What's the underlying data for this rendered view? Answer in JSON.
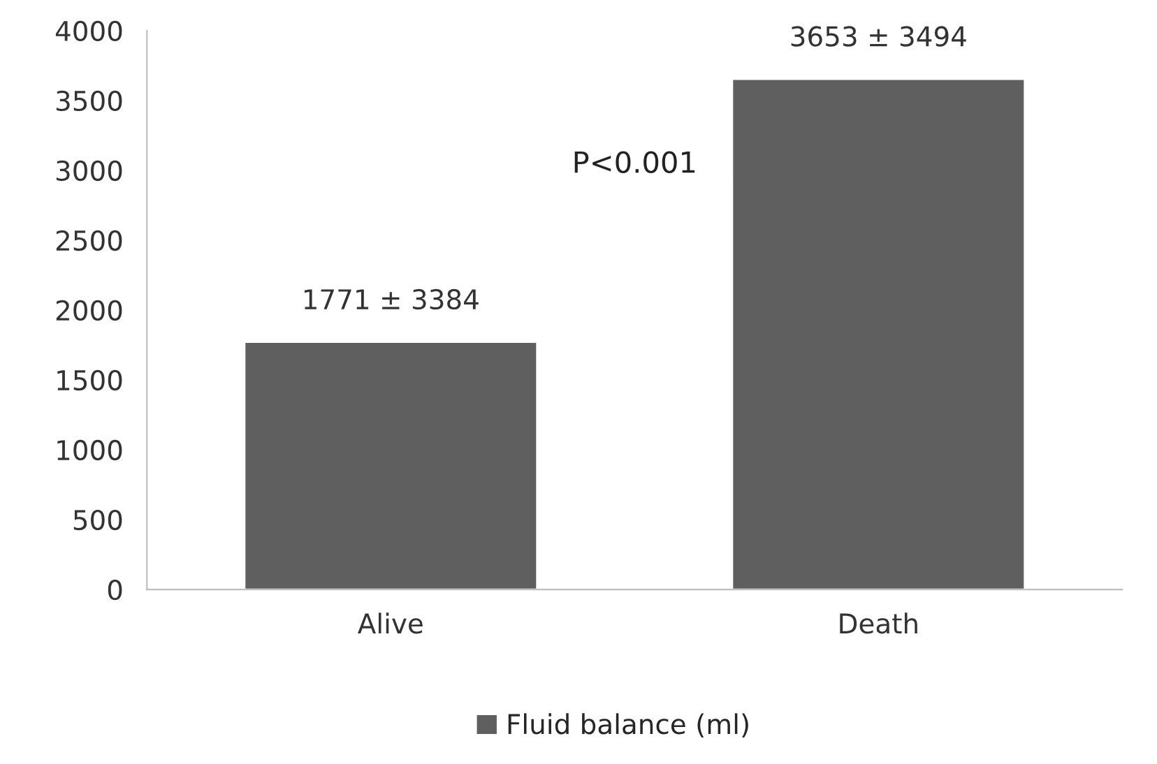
{
  "chart_data": {
    "type": "bar",
    "categories": [
      "Alive",
      "Death"
    ],
    "series": [
      {
        "name": "Fluid balance (ml)",
        "color": "#5f5f5f",
        "values": [
          1771,
          3653
        ],
        "value_labels": [
          "1771 ± 3384",
          "3653 ± 3494"
        ]
      }
    ],
    "ylim": [
      0,
      4000
    ],
    "yticks": [
      0,
      500,
      1000,
      1500,
      2000,
      2500,
      3000,
      3500,
      4000
    ],
    "annotations": [
      "P<0.001"
    ],
    "grid": false,
    "legend": "bottom"
  }
}
